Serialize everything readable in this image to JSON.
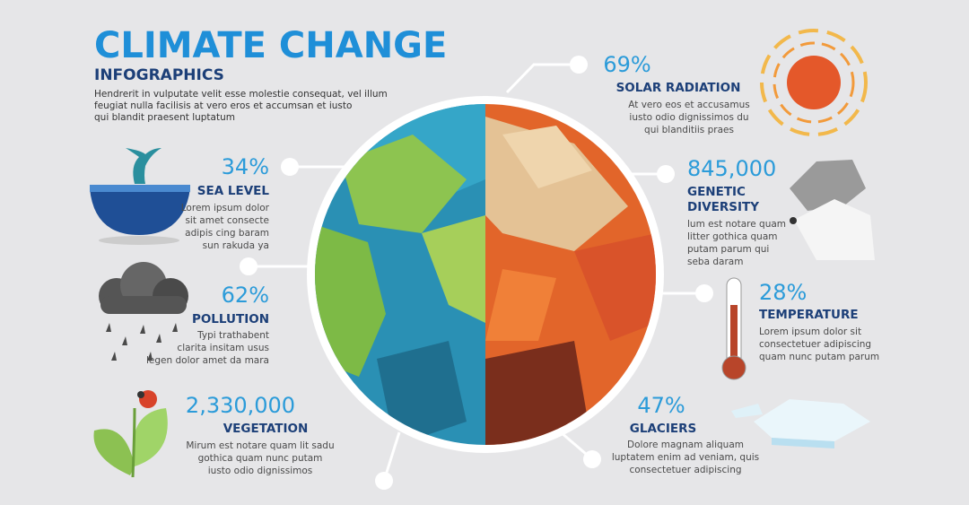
{
  "header": {
    "title": "CLIMATE CHANGE",
    "subtitle": "INFOGRAPHICS",
    "text": [
      "Hendrerit in vulputate velit esse molestie consequat, vel illum",
      "feugiat nulla facilisis at vero eros et accumsan et iusto",
      "qui blandit praesent luptatum"
    ]
  },
  "items": [
    {
      "value": "34%",
      "label": [
        "SEA LEVEL"
      ],
      "text": [
        "Lorem ipsum dolor",
        "sit amet consecte",
        "adipis cing baram",
        "sun rakuda ya"
      ]
    },
    {
      "value": "62%",
      "label": [
        "POLLUTION"
      ],
      "text": [
        "Typi trathabent",
        "clarita insitam usus",
        "legen dolor amet da mara"
      ]
    },
    {
      "value": "2,330,000",
      "label": [
        "VEGETATION"
      ],
      "text": [
        "Mirum est notare quam lit sadu",
        "gothica quam nunc putam",
        "iusto odio dignissimos"
      ]
    },
    {
      "value": "69%",
      "label": [
        "SOLAR RADIATION"
      ],
      "text": [
        "At vero eos et accusamus",
        "iusto odio dignissimos du",
        "qui blanditiis praes"
      ]
    },
    {
      "value": "845,000",
      "label": [
        "GENETIC",
        "DIVERSITY"
      ],
      "text": [
        "lum est notare quam",
        "litter gothica quam",
        "putam parum qui",
        "seba  daram"
      ]
    },
    {
      "value": "28%",
      "label": [
        "TEMPERATURE"
      ],
      "text": [
        "Lorem ipsum dolor sit",
        "consectetuer adipiscing",
        "quam nunc putam parum"
      ]
    },
    {
      "value": "47%",
      "label": [
        "GLACIERS"
      ],
      "text": [
        "Dolore magnam aliquam",
        "luptatem enim ad veniam, quis",
        "consectetuer adipiscing"
      ]
    }
  ]
}
